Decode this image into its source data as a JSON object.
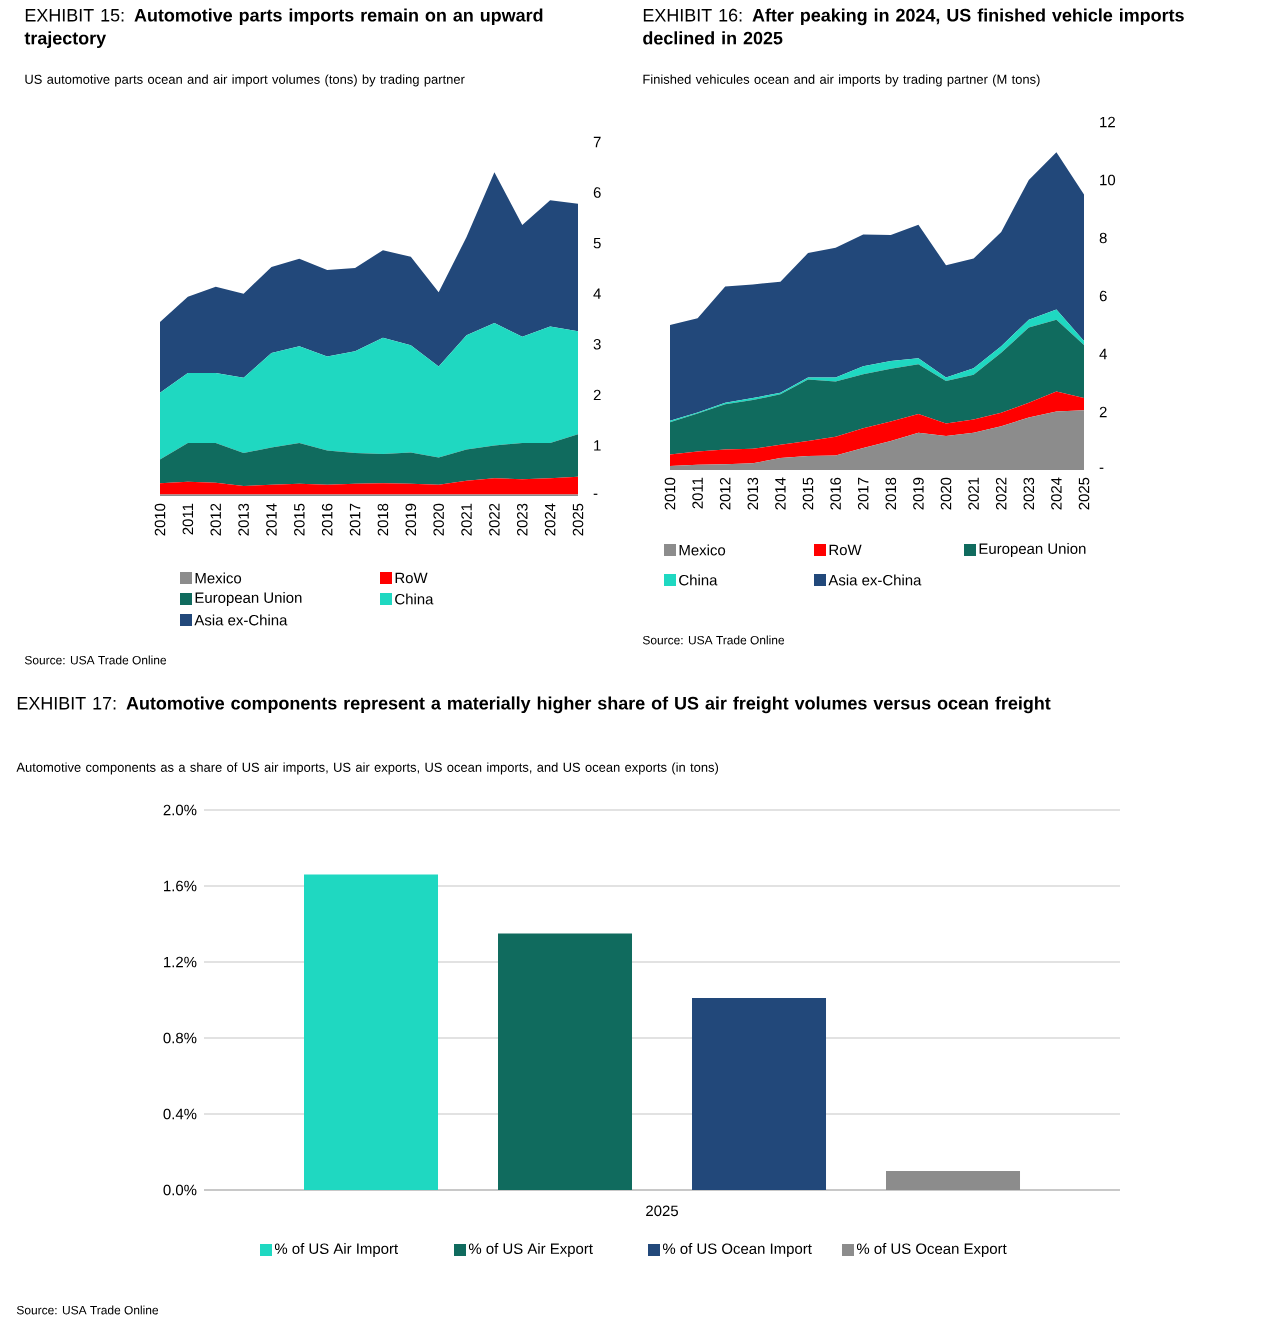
{
  "chart_data": [
    {
      "type": "area",
      "stacked": true,
      "title": "EXHIBIT 15: **Automotive parts imports remain on an upward trajectory**",
      "subtitle": "US automotive parts ocean and air import volumes (tons) by trading partner",
      "categories": [
        "2010",
        "2011",
        "2012",
        "2013",
        "2014",
        "2015",
        "2016",
        "2017",
        "2018",
        "2019",
        "2020",
        "2021",
        "2022",
        "2023",
        "2024",
        "2025"
      ],
      "ylim": [
        0,
        7
      ],
      "yticks": [
        {
          "value": 0,
          "label": "-"
        },
        1,
        2,
        3,
        4,
        5,
        6,
        7
      ],
      "legend": "bottom",
      "series": [
        {
          "name": "Mexico",
          "color": "#8c8c8c",
          "values": [
            0.03,
            0.03,
            0.03,
            0.03,
            0.03,
            0.03,
            0.03,
            0.03,
            0.03,
            0.03,
            0.03,
            0.03,
            0.03,
            0.03,
            0.03,
            0.03
          ]
        },
        {
          "name": "RoW",
          "color": "#ff0000",
          "values": [
            0.22,
            0.25,
            0.23,
            0.17,
            0.19,
            0.21,
            0.19,
            0.21,
            0.22,
            0.21,
            0.19,
            0.27,
            0.32,
            0.3,
            0.32,
            0.35
          ]
        },
        {
          "name": "European Union",
          "color": "#106b5e",
          "values": [
            0.47,
            0.77,
            0.79,
            0.65,
            0.74,
            0.81,
            0.68,
            0.61,
            0.58,
            0.62,
            0.54,
            0.62,
            0.65,
            0.72,
            0.7,
            0.84
          ]
        },
        {
          "name": "China",
          "color": "#1fd8c1",
          "values": [
            1.32,
            1.38,
            1.38,
            1.49,
            1.87,
            1.91,
            1.86,
            2.01,
            2.3,
            2.12,
            1.8,
            2.26,
            2.42,
            2.1,
            2.3,
            2.04
          ]
        },
        {
          "name": "Asia ex-China",
          "color": "#22487a",
          "values": [
            1.4,
            1.51,
            1.71,
            1.66,
            1.7,
            1.73,
            1.71,
            1.65,
            1.73,
            1.75,
            1.47,
            1.94,
            2.98,
            2.21,
            2.5,
            2.52
          ]
        }
      ],
      "annotations": [
        "Source: USA Trade Online"
      ]
    },
    {
      "type": "area",
      "stacked": true,
      "title": "EXHIBIT 16: **After peaking in 2024, US finished vehicle imports declined in 2025**",
      "subtitle": "Finished vehicules ocean and air imports by trading partner (M tons)",
      "categories": [
        "2010",
        "2011",
        "2012",
        "2013",
        "2014",
        "2015",
        "2016",
        "2017",
        "2018",
        "2019",
        "2020",
        "2021",
        "2022",
        "2023",
        "2024",
        "2025"
      ],
      "ylim": [
        0,
        12
      ],
      "yticks": [
        {
          "value": 0,
          "label": "-"
        },
        2,
        4,
        6,
        8,
        10,
        12
      ],
      "legend": "bottom",
      "series": [
        {
          "name": "Mexico",
          "color": "#8c8c8c",
          "values": [
            0.14,
            0.18,
            0.2,
            0.23,
            0.41,
            0.48,
            0.5,
            0.76,
            1.0,
            1.28,
            1.17,
            1.28,
            1.51,
            1.81,
            2.02,
            2.06
          ]
        },
        {
          "name": "RoW",
          "color": "#ff0000",
          "values": [
            0.39,
            0.46,
            0.51,
            0.5,
            0.46,
            0.52,
            0.65,
            0.68,
            0.67,
            0.65,
            0.43,
            0.46,
            0.46,
            0.51,
            0.69,
            0.42
          ]
        },
        {
          "name": "European Union",
          "color": "#106b5e",
          "values": [
            1.12,
            1.31,
            1.56,
            1.68,
            1.74,
            2.12,
            1.9,
            1.86,
            1.82,
            1.72,
            1.47,
            1.54,
            2.07,
            2.59,
            2.47,
            1.83
          ]
        },
        {
          "name": "China",
          "color": "#1fd8c1",
          "values": [
            0.05,
            0.03,
            0.05,
            0.07,
            0.05,
            0.07,
            0.14,
            0.28,
            0.27,
            0.2,
            0.12,
            0.23,
            0.23,
            0.27,
            0.35,
            0.14
          ]
        },
        {
          "name": "Asia ex-China",
          "color": "#22487a",
          "values": [
            3.3,
            3.25,
            4.01,
            3.92,
            3.83,
            4.29,
            4.47,
            4.54,
            4.34,
            4.61,
            3.87,
            3.78,
            3.94,
            4.82,
            5.43,
            5.05
          ]
        }
      ],
      "annotations": [
        "Source: USA Trade Online"
      ]
    },
    {
      "type": "bar",
      "title": "EXHIBIT 17: **Automotive components represent a materially higher share of US air freight volumes versus ocean freight**",
      "subtitle": "Automotive components as a share of US air imports, US air exports, US ocean imports, and US ocean exports (in tons)",
      "categories": [
        "2025"
      ],
      "ylim": [
        0,
        2
      ],
      "yticks": [
        {
          "value": 0,
          "label": "0.0%"
        },
        {
          "value": 0.4,
          "label": "0.4%"
        },
        {
          "value": 0.8,
          "label": "0.8%"
        },
        {
          "value": 1.2,
          "label": "1.2%"
        },
        {
          "value": 1.6,
          "label": "1.6%"
        },
        {
          "value": 2.0,
          "label": "2.0%"
        }
      ],
      "grid": "y",
      "legend": "bottom",
      "series": [
        {
          "name": "% of US Air Import",
          "color": "#1fd8c1",
          "values": [
            1.66
          ]
        },
        {
          "name": "% of US Air Export",
          "color": "#106b5e",
          "values": [
            1.35
          ]
        },
        {
          "name": "% of US Ocean Import",
          "color": "#22487a",
          "values": [
            1.01
          ]
        },
        {
          "name": "% of US Ocean Export",
          "color": "#8c8c8c",
          "values": [
            0.1
          ]
        }
      ],
      "annotations": [
        "Source: USA Trade Online"
      ]
    }
  ]
}
